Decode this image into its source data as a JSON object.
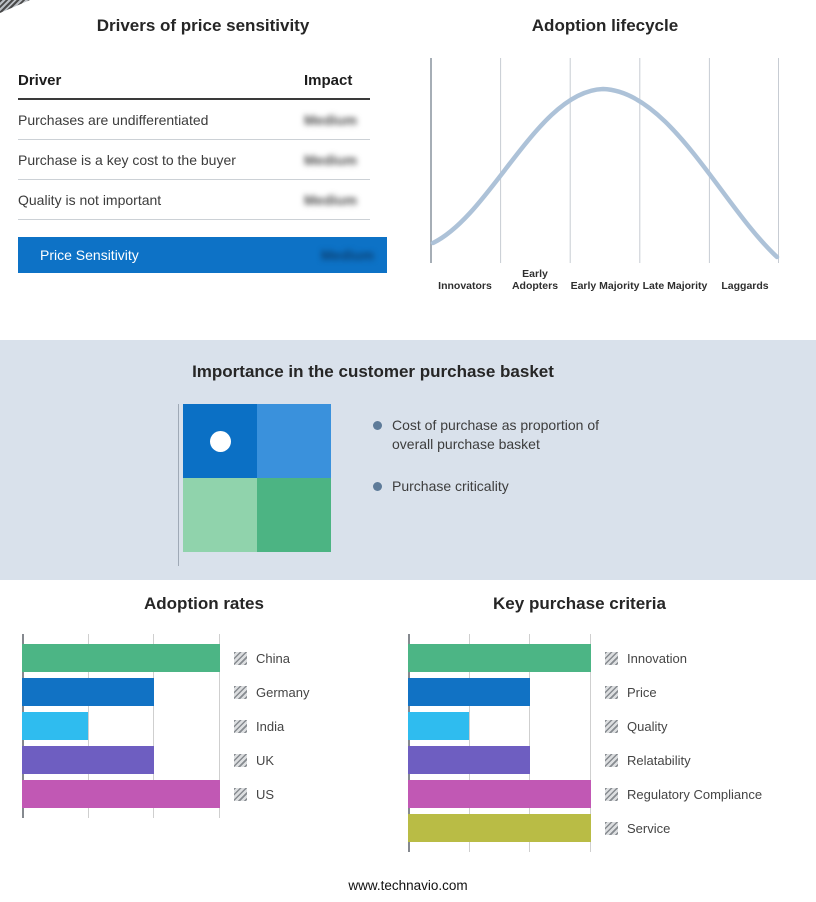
{
  "drivers": {
    "title": "Drivers of price sensitivity",
    "col_driver": "Driver",
    "col_impact": "Impact",
    "rows": [
      {
        "driver": "Purchases are undifferentiated",
        "impact": "Medium"
      },
      {
        "driver": "Purchase is a key cost to the buyer",
        "impact": "Medium"
      },
      {
        "driver": "Quality is not important",
        "impact": "Medium"
      }
    ],
    "highlight": {
      "label": "Price Sensitivity",
      "impact": "Medium"
    },
    "highlight_color": "#0d72c6",
    "impact_values_blurred": true
  },
  "lifecycle": {
    "title": "Adoption lifecycle",
    "stages": [
      "Innovators",
      "Early Adopters",
      "Early Majority",
      "Late Majority",
      "Laggards"
    ],
    "curve_color": "#adc2d8"
  },
  "basket": {
    "title": "Importance in the customer purchase basket",
    "bullets": [
      "Cost of purchase as proportion of overall purchase basket",
      "Purchase criticality"
    ],
    "quadrant_colors": {
      "tl": "#0b70c5",
      "tr": "#3a91dc",
      "bl": "#90d3ac",
      "br": "#4cb483"
    }
  },
  "chart_data": [
    {
      "type": "bar",
      "orientation": "horizontal",
      "title": "Adoption rates",
      "categories": [
        "China",
        "Germany",
        "India",
        "UK",
        "US"
      ],
      "values": [
        3,
        2,
        1,
        2,
        3
      ],
      "colors": [
        "#4CB585",
        "#1172C4",
        "#2FBCEF",
        "#6E5EC1",
        "#C158B4"
      ],
      "x_max": 3,
      "x_gridline_units": [
        0,
        1,
        2,
        3
      ],
      "tick_labels_visible": false,
      "unit": "relative",
      "legend_position": "right"
    },
    {
      "type": "bar",
      "orientation": "horizontal",
      "title": "Key purchase criteria",
      "categories": [
        "Innovation",
        "Price",
        "Quality",
        "Relatability",
        "Regulatory Compliance",
        "Service"
      ],
      "values": [
        3,
        2,
        1,
        2,
        3,
        3
      ],
      "colors": [
        "#4CB585",
        "#1172C4",
        "#2FBCEF",
        "#6E5EC1",
        "#C158B4",
        "#B9BC45"
      ],
      "x_max": 3,
      "x_gridline_units": [
        0,
        1,
        2,
        3
      ],
      "tick_labels_visible": false,
      "unit": "relative",
      "legend_position": "right"
    }
  ],
  "footer": {
    "url": "www.technavio.com"
  }
}
